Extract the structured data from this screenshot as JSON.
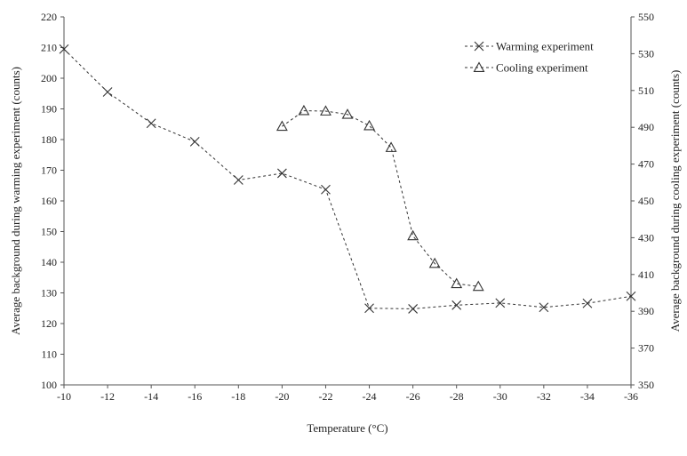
{
  "chart_data": {
    "type": "line",
    "xlabel": "Temperature (°C)",
    "ylabel_left": "Average background during warming experiment (counts)",
    "ylabel_right": "Average background during cooling experiment (counts)",
    "x_ticks": [
      -10,
      -12,
      -14,
      -16,
      -18,
      -20,
      -22,
      -24,
      -26,
      -28,
      -30,
      -32,
      -34,
      -36
    ],
    "xlim": [
      -10,
      -36
    ],
    "ylim_left": [
      100,
      220
    ],
    "ylim_right": [
      350,
      550
    ],
    "y_ticks_left": [
      100,
      110,
      120,
      130,
      140,
      150,
      160,
      170,
      180,
      190,
      200,
      210,
      220
    ],
    "y_ticks_right": [
      350,
      370,
      390,
      410,
      430,
      450,
      470,
      490,
      510,
      530,
      550
    ],
    "grid": false,
    "legend_position": "top-right",
    "series": [
      {
        "name": "Warming experiment",
        "axis": "left",
        "marker": "x",
        "x": [
          -10,
          -12,
          -14,
          -16,
          -18,
          -20,
          -22,
          -24,
          -26,
          -28,
          -30,
          -32,
          -34,
          -36
        ],
        "y": [
          209.5,
          195.5,
          185.3,
          179.3,
          166.8,
          169,
          163.7,
          125,
          124.8,
          126,
          126.7,
          125.3,
          126.6,
          128.9
        ]
      },
      {
        "name": "Cooling experiment",
        "axis": "right",
        "marker": "triangle",
        "x": [
          -20,
          -21,
          -22,
          -23,
          -24,
          -25,
          -26,
          -27,
          -28,
          -29
        ],
        "y": [
          490.5,
          499,
          498.8,
          497,
          490.8,
          479,
          431,
          416,
          405,
          403.5
        ]
      }
    ]
  }
}
